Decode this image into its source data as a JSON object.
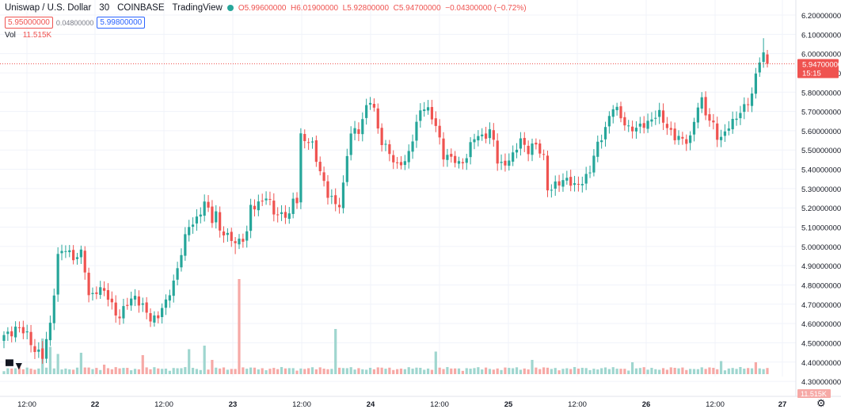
{
  "header": {
    "symbol": "Uniswap / U.S. Dollar",
    "interval": "30",
    "exchange": "COINBASE",
    "provider": "TradingView",
    "status_color": "#26a69a",
    "o": "O5.99600000",
    "h": "H6.01900000",
    "l": "L5.92800000",
    "c": "C5.94700000",
    "change": "−0.04300000 (−0.72%)",
    "bid": "5.95000000",
    "spread": "0.04800000",
    "ask": "5.99800000",
    "vol_label": "Vol",
    "vol_value": "11.515K"
  },
  "colors": {
    "up": "#26a69a",
    "down": "#ef5350",
    "vol_up": "#9fd6cf",
    "vol_down": "#f6a9a6",
    "grid": "#f0f3fa"
  },
  "logo_icon": "tradingview-logo-icon",
  "settings_icon": "gear-icon",
  "chart_data": {
    "type": "candlestick",
    "instrument": "Uniswap / U.S. Dollar",
    "interval": "30",
    "y_ticks": [
      "6.20000000",
      "6.10000000",
      "6.00000000",
      "5.90000000",
      "5.80000000",
      "5.70000000",
      "5.60000000",
      "5.50000000",
      "5.40000000",
      "5.30000000",
      "5.20000000",
      "5.10000000",
      "5.00000000",
      "4.90000000",
      "4.80000000",
      "4.70000000",
      "4.60000000",
      "4.50000000",
      "4.40000000",
      "4.30000000"
    ],
    "ylim": [
      4.25,
      6.25
    ],
    "x_ticks": [
      "12:00",
      "22",
      "12:00",
      "23",
      "12:00",
      "24",
      "12:00",
      "25",
      "12:00",
      "26",
      "12:00",
      "27"
    ],
    "last_price": "5.94700000",
    "last_price_countdown": "15:15",
    "last_volume": "11.515K",
    "grid": true,
    "anchors": [
      [
        0,
        4.53
      ],
      [
        3,
        4.58
      ],
      [
        6,
        4.54
      ],
      [
        8,
        4.47
      ],
      [
        10,
        4.42
      ],
      [
        12,
        4.6
      ],
      [
        14,
        4.95
      ],
      [
        16,
        4.98
      ],
      [
        18,
        4.95
      ],
      [
        20,
        4.96
      ],
      [
        21,
        4.87
      ],
      [
        22,
        4.74
      ],
      [
        24,
        4.78
      ],
      [
        26,
        4.76
      ],
      [
        28,
        4.7
      ],
      [
        30,
        4.63
      ],
      [
        32,
        4.7
      ],
      [
        34,
        4.75
      ],
      [
        36,
        4.68
      ],
      [
        38,
        4.62
      ],
      [
        40,
        4.65
      ],
      [
        42,
        4.7
      ],
      [
        44,
        4.82
      ],
      [
        46,
        4.97
      ],
      [
        48,
        5.1
      ],
      [
        50,
        5.15
      ],
      [
        52,
        5.22
      ],
      [
        54,
        5.14
      ],
      [
        55,
        5.18
      ],
      [
        56,
        5.09
      ],
      [
        58,
        5.04
      ],
      [
        60,
        5.03
      ],
      [
        62,
        5.04
      ],
      [
        63,
        5.06
      ],
      [
        64,
        5.2
      ],
      [
        66,
        5.23
      ],
      [
        68,
        5.25
      ],
      [
        70,
        5.18
      ],
      [
        72,
        5.17
      ],
      [
        74,
        5.15
      ],
      [
        75,
        5.24
      ],
      [
        76,
        5.25
      ],
      [
        77,
        5.58
      ],
      [
        78,
        5.55
      ],
      [
        80,
        5.52
      ],
      [
        82,
        5.4
      ],
      [
        84,
        5.26
      ],
      [
        86,
        5.22
      ],
      [
        87,
        5.23
      ],
      [
        88,
        5.32
      ],
      [
        89,
        5.47
      ],
      [
        90,
        5.58
      ],
      [
        92,
        5.61
      ],
      [
        94,
        5.72
      ],
      [
        95,
        5.75
      ],
      [
        96,
        5.7
      ],
      [
        97,
        5.62
      ],
      [
        98,
        5.55
      ],
      [
        100,
        5.48
      ],
      [
        101,
        5.43
      ],
      [
        102,
        5.42
      ],
      [
        103,
        5.45
      ],
      [
        104,
        5.44
      ],
      [
        105,
        5.48
      ],
      [
        106,
        5.55
      ],
      [
        107,
        5.63
      ],
      [
        108,
        5.72
      ],
      [
        109,
        5.73
      ],
      [
        110,
        5.7
      ],
      [
        111,
        5.66
      ],
      [
        112,
        5.62
      ],
      [
        113,
        5.56
      ],
      [
        114,
        5.48
      ],
      [
        116,
        5.45
      ],
      [
        118,
        5.43
      ],
      [
        120,
        5.47
      ],
      [
        122,
        5.56
      ],
      [
        124,
        5.58
      ],
      [
        126,
        5.59
      ],
      [
        127,
        5.54
      ],
      [
        128,
        5.44
      ],
      [
        129,
        5.43
      ],
      [
        130,
        5.44
      ],
      [
        132,
        5.46
      ],
      [
        134,
        5.56
      ],
      [
        136,
        5.5
      ],
      [
        138,
        5.52
      ],
      [
        140,
        5.47
      ],
      [
        141,
        5.31
      ],
      [
        142,
        5.29
      ],
      [
        144,
        5.33
      ],
      [
        146,
        5.36
      ],
      [
        148,
        5.3
      ],
      [
        150,
        5.34
      ],
      [
        152,
        5.4
      ],
      [
        154,
        5.52
      ],
      [
        156,
        5.62
      ],
      [
        157,
        5.68
      ],
      [
        158,
        5.72
      ],
      [
        160,
        5.67
      ],
      [
        162,
        5.62
      ],
      [
        164,
        5.6
      ],
      [
        166,
        5.64
      ],
      [
        168,
        5.66
      ],
      [
        170,
        5.68
      ],
      [
        172,
        5.63
      ],
      [
        174,
        5.56
      ],
      [
        176,
        5.55
      ],
      [
        178,
        5.57
      ],
      [
        180,
        5.72
      ],
      [
        181,
        5.75
      ],
      [
        182,
        5.7
      ],
      [
        184,
        5.63
      ],
      [
        185,
        5.56
      ],
      [
        186,
        5.55
      ],
      [
        188,
        5.64
      ],
      [
        190,
        5.66
      ],
      [
        192,
        5.72
      ],
      [
        194,
        5.8
      ],
      [
        195,
        5.88
      ],
      [
        196,
        5.96
      ],
      [
        197,
        5.99
      ],
      [
        198,
        5.947
      ]
    ],
    "volume_spikes": [
      [
        10,
        "up",
        0.3
      ],
      [
        12,
        "up",
        0.23
      ],
      [
        14,
        "up",
        0.17
      ],
      [
        20,
        "up",
        0.18
      ],
      [
        26,
        "down",
        0.08
      ],
      [
        36,
        "down",
        0.16
      ],
      [
        48,
        "up",
        0.21
      ],
      [
        52,
        "up",
        0.24
      ],
      [
        54,
        "down",
        0.12
      ],
      [
        61,
        "down",
        0.8
      ],
      [
        86,
        "up",
        0.38
      ],
      [
        112,
        "up",
        0.19
      ],
      [
        137,
        "up",
        0.12
      ],
      [
        163,
        "up",
        0.1
      ],
      [
        186,
        "up",
        0.11
      ],
      [
        195,
        "down",
        0.1
      ]
    ]
  }
}
